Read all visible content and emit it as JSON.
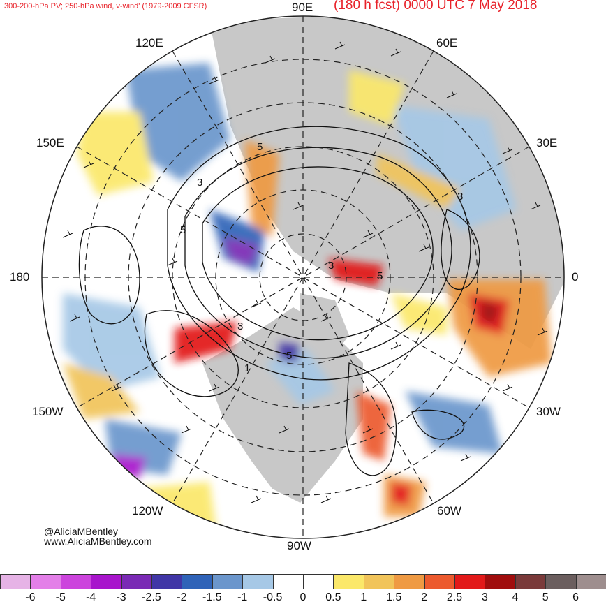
{
  "header": {
    "product": "300-200-hPa PV; 250-hPa wind, v-wind' (1979-2009 CFSR)",
    "forecast": "(180 h fcst) 0000 UTC 7 May 2018"
  },
  "longitude_labels": {
    "e90": "90E",
    "e60": "60E",
    "e120": "120E",
    "e150": "150E",
    "e30": "30E",
    "lon180": "180",
    "lon0": "0",
    "w150": "150W",
    "w30": "30W",
    "w120": "120W",
    "w60": "60W",
    "w90": "90W"
  },
  "contour_labels": [
    "5",
    "3",
    "5",
    "3",
    "5",
    "3",
    "3",
    "1",
    "5"
  ],
  "credit": {
    "handle": "@AliciaMBentley",
    "site": "www.AliciaMBentley.com"
  },
  "colorbar": {
    "ticks": [
      "-6",
      "-5",
      "-4",
      "-3",
      "-2.5",
      "-2",
      "-1.5",
      "-1",
      "-0.5",
      "0",
      "0.5",
      "1",
      "1.5",
      "2",
      "2.5",
      "3",
      "4",
      "5",
      "6"
    ],
    "colors": [
      "#e6b3e6",
      "#e37fe8",
      "#cc44dd",
      "#a815cc",
      "#7a2ab5",
      "#4036a6",
      "#2f63b8",
      "#6b96cc",
      "#a6c8e6",
      "#ffffff",
      "#ffffff",
      "#fbe86a",
      "#f1c45a",
      "#ef9a43",
      "#ec5a2e",
      "#e21919",
      "#a00d0d",
      "#7a3a3a",
      "#6b5e5e",
      "#9e8e8e"
    ]
  },
  "colors": {
    "title": "#e8222a",
    "land": "#c8c8c8",
    "contour": "#111111"
  }
}
